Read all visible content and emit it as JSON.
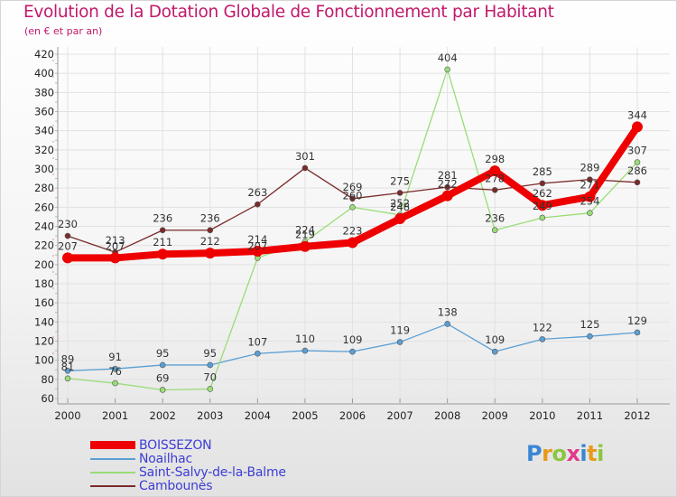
{
  "header": {
    "title": "Evolution de la Dotation Globale de Fonctionnement par Habitant",
    "subtitle": "(en € et par an)"
  },
  "logo": {
    "text": "Proxiti",
    "letters": [
      {
        "ch": "P",
        "color": "#3a86d4"
      },
      {
        "ch": "r",
        "color": "#e89a1a"
      },
      {
        "ch": "o",
        "color": "#8cc63f"
      },
      {
        "ch": "x",
        "color": "#e23a8a"
      },
      {
        "ch": "i",
        "color": "#3a86d4"
      },
      {
        "ch": "t",
        "color": "#e89a1a"
      },
      {
        "ch": "i",
        "color": "#8cc63f"
      }
    ]
  },
  "chart_data": {
    "type": "line",
    "title": "Evolution de la Dotation Globale de Fonctionnement par Habitant",
    "subtitle": "(en € et par an)",
    "xlabel": "",
    "ylabel": "",
    "x": [
      2000,
      2001,
      2002,
      2003,
      2004,
      2005,
      2006,
      2007,
      2008,
      2009,
      2010,
      2011,
      2012
    ],
    "ylim": [
      60,
      420
    ],
    "yticks": [
      60,
      80,
      100,
      120,
      140,
      160,
      180,
      200,
      220,
      240,
      260,
      280,
      300,
      320,
      340,
      360,
      380,
      400,
      420
    ],
    "grid": true,
    "legend_position": "bottom-left",
    "series": [
      {
        "name": "BOISSEZON",
        "color": "#ee0000",
        "emphasis": true,
        "values": [
          207,
          207,
          211,
          212,
          214,
          219,
          223,
          248,
          272,
          298,
          262,
          271,
          344
        ]
      },
      {
        "name": "Noailhac",
        "color": "#5a9fd4",
        "emphasis": false,
        "values": [
          89,
          91,
          95,
          95,
          107,
          110,
          109,
          119,
          138,
          109,
          122,
          125,
          129
        ]
      },
      {
        "name": "Saint-Salvy-de-la-Balme",
        "color": "#99dd77",
        "emphasis": false,
        "values": [
          81,
          76,
          69,
          70,
          207,
          224,
          260,
          252,
          404,
          236,
          249,
          254,
          307
        ]
      },
      {
        "name": "Cambounès",
        "color": "#7a2a2a",
        "emphasis": false,
        "values": [
          230,
          213,
          236,
          236,
          263,
          301,
          269,
          275,
          281,
          278,
          285,
          289,
          286
        ]
      }
    ]
  }
}
